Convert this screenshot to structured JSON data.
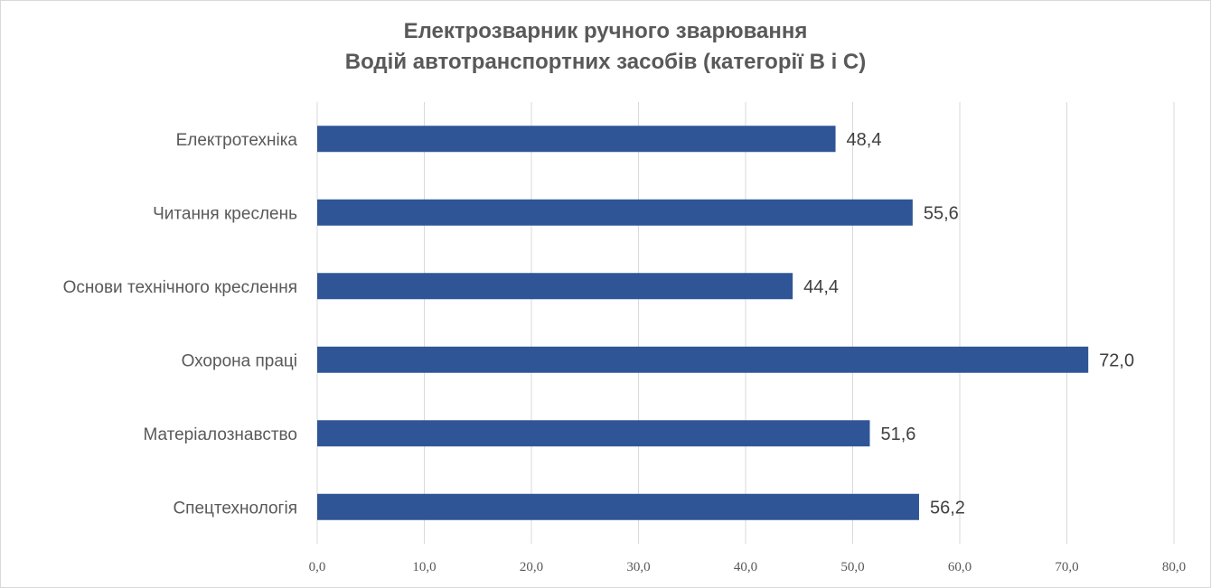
{
  "chart_data": {
    "type": "bar",
    "orientation": "horizontal",
    "title": "Електрозварник ручного зварювання",
    "subtitle": "Водій автотранспортних засобів (категорії В і С)",
    "categories": [
      "Електротехніка",
      "Читання креслень",
      "Основи технічного креслення",
      "Охорона праці",
      "Матеріалознавство",
      "Спецтехнологія"
    ],
    "values": [
      48.4,
      55.6,
      44.4,
      72.0,
      51.6,
      56.2
    ],
    "value_labels": [
      "48,4",
      "55,6",
      "44,4",
      "72,0",
      "51,6",
      "56,2"
    ],
    "xlim": [
      0,
      80
    ],
    "ticks": [
      0,
      10,
      20,
      30,
      40,
      50,
      60,
      70,
      80
    ],
    "tick_labels": [
      "0,0",
      "10,0",
      "20,0",
      "30,0",
      "40,0",
      "50,0",
      "60,0",
      "70,0",
      "80,0"
    ],
    "xlabel": "",
    "ylabel": "",
    "grid": true,
    "legend": "none",
    "bar_color": "#2f5597",
    "grid_color": "#d9d9d9",
    "text_color": "#595959"
  }
}
